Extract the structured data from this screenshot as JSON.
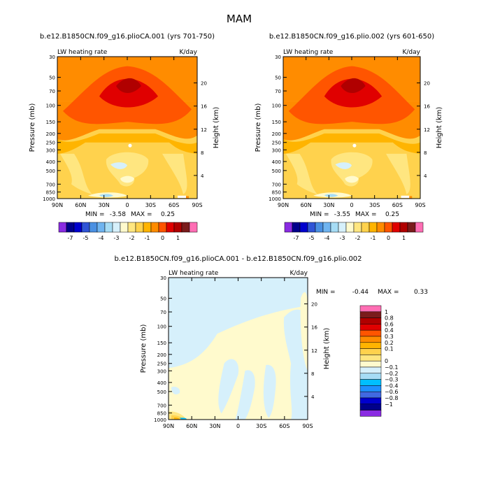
{
  "figure_title": "MAM",
  "palette_cells": [
    "#8a2be2",
    "#00008b",
    "#0000cd",
    "#2f54d6",
    "#4a90e2",
    "#6fb4f0",
    "#a6dcf5",
    "#d6f0fb",
    "#fffacd",
    "#ffe680",
    "#ffd24d",
    "#ffb400",
    "#ff8c00",
    "#ff5500",
    "#e00000",
    "#b00000",
    "#7a1c1c",
    "#ff6eb4"
  ],
  "diff_colors": {
    "neg_0_2": "#00bfff",
    "neg_0_1": "#a6dcf5",
    "zero": "#d6f0fb",
    "pos_0_1": "#fffacd",
    "pos_0_2": "#ffe680",
    "pos_0_3": "#ffd24d",
    "pos_0_4": "#ffb400"
  },
  "chart_data": [
    {
      "type": "heatmap",
      "title": "b.e12.B1850CN.f09_g16.plioCA.001 (yrs 701-750)",
      "left_string": "LW heating rate",
      "right_string": "K/day",
      "xlabel": "",
      "ylabel": "Pressure (mb)",
      "y2label": "Height (km)",
      "x_ticks": [
        "90N",
        "60N",
        "30N",
        "0",
        "30S",
        "60S",
        "90S"
      ],
      "y_ticks": [
        30,
        50,
        70,
        100,
        150,
        200,
        250,
        300,
        400,
        500,
        700,
        850,
        1000
      ],
      "y_log": true,
      "y2_ticks": [
        4,
        8,
        12,
        16,
        20
      ],
      "min_text": "MIN =",
      "min_value": "-3.58",
      "max_text": "MAX =",
      "max_value": "0.25"
    },
    {
      "type": "heatmap",
      "title": "b.e12.B1850CN.f09_g16.plio.002 (yrs 601-650)",
      "left_string": "LW heating rate",
      "right_string": "K/day",
      "xlabel": "",
      "ylabel": "Pressure (mb)",
      "y2label": "Height (km)",
      "x_ticks": [
        "90N",
        "60N",
        "30N",
        "0",
        "30S",
        "60S",
        "90S"
      ],
      "y_ticks": [
        30,
        50,
        70,
        100,
        150,
        200,
        250,
        300,
        400,
        500,
        700,
        850,
        1000
      ],
      "y_log": true,
      "y2_ticks": [
        4,
        8,
        12,
        16,
        20
      ],
      "min_text": "MIN =",
      "min_value": "-3.55",
      "max_text": "MAX =",
      "max_value": "0.25"
    },
    {
      "type": "heatmap",
      "title": "b.e12.B1850CN.f09_g16.plioCA.001 - b.e12.B1850CN.f09_g16.plio.002",
      "left_string": "LW heating rate",
      "right_string": "K/day",
      "xlabel": "",
      "ylabel": "Pressure (mb)",
      "y2label": "Height (km)",
      "x_ticks": [
        "90N",
        "60N",
        "30N",
        "0",
        "30S",
        "60S",
        "90S"
      ],
      "y_ticks": [
        30,
        50,
        70,
        100,
        150,
        200,
        250,
        300,
        400,
        500,
        700,
        850,
        1000
      ],
      "y_log": true,
      "y2_ticks": [
        4,
        8,
        12,
        16,
        20
      ],
      "min_text": "MIN =",
      "min_value": "-0.44",
      "max_text": "MAX =",
      "max_value": "0.33"
    }
  ],
  "colorbar_top": {
    "labels": [
      "-7",
      "-5",
      "-4",
      "-3",
      "-2",
      "-1",
      "0",
      "1"
    ]
  },
  "colorbar_diff": {
    "colors": [
      "#ff6eb4",
      "#7a1c1c",
      "#b00000",
      "#e00000",
      "#ff5500",
      "#ff8c00",
      "#ffb400",
      "#ffd24d",
      "#ffe680",
      "#fffacd",
      "#d6f0fb",
      "#a6dcf5",
      "#00bfff",
      "#1e90ff",
      "#4169e1",
      "#0000cd",
      "#00008b",
      "#8a2be2"
    ],
    "labels": [
      "1",
      "0.8",
      "0.6",
      "0.4",
      "0.3",
      "0.2",
      "0.1",
      "0",
      "-0.1",
      "-0.2",
      "-0.3",
      "-0.4",
      "-0.6",
      "-0.8",
      "-1"
    ]
  }
}
